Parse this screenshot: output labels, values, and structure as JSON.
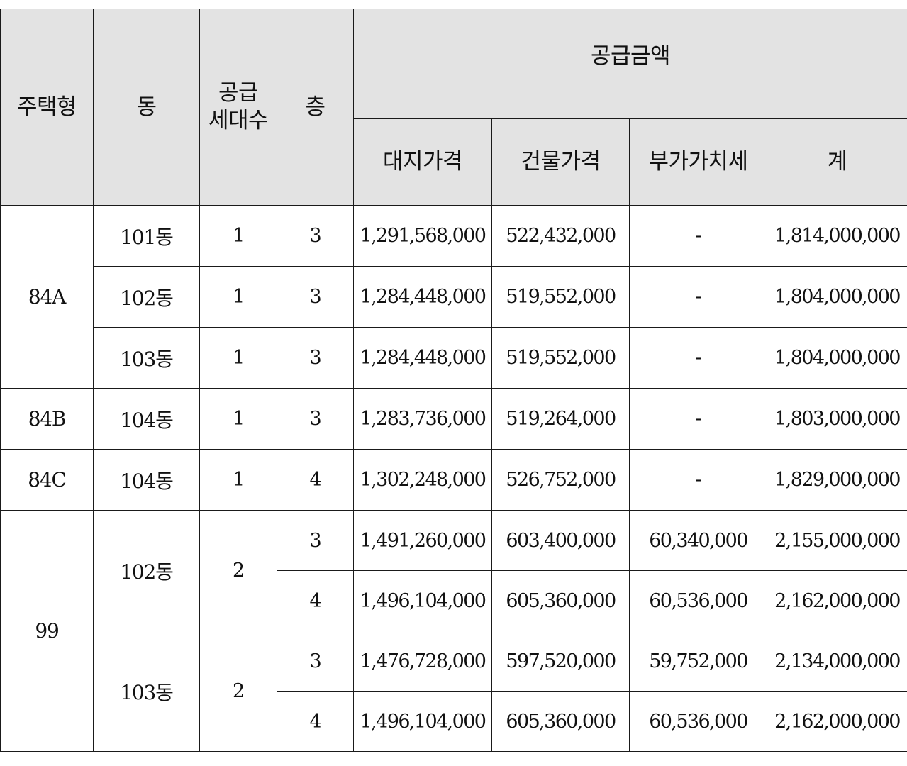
{
  "table": {
    "headers": {
      "type": "주택형",
      "dong": "동",
      "units_line1": "공급",
      "units_line2": "세대수",
      "floor": "층",
      "amount": "공급금액",
      "land": "대지가격",
      "building": "건물가격",
      "vat": "부가가치세",
      "total": "계"
    },
    "groups": [
      {
        "type": "84A",
        "rows": [
          {
            "dong": "101동",
            "units": "1",
            "floor": "3",
            "land": "1,291,568,000",
            "building": "522,432,000",
            "vat": "-",
            "total": "1,814,000,000"
          },
          {
            "dong": "102동",
            "units": "1",
            "floor": "3",
            "land": "1,284,448,000",
            "building": "519,552,000",
            "vat": "-",
            "total": "1,804,000,000"
          },
          {
            "dong": "103동",
            "units": "1",
            "floor": "3",
            "land": "1,284,448,000",
            "building": "519,552,000",
            "vat": "-",
            "total": "1,804,000,000"
          }
        ]
      },
      {
        "type": "84B",
        "rows": [
          {
            "dong": "104동",
            "units": "1",
            "floor": "3",
            "land": "1,283,736,000",
            "building": "519,264,000",
            "vat": "-",
            "total": "1,803,000,000"
          }
        ]
      },
      {
        "type": "84C",
        "rows": [
          {
            "dong": "104동",
            "units": "1",
            "floor": "4",
            "land": "1,302,248,000",
            "building": "526,752,000",
            "vat": "-",
            "total": "1,829,000,000"
          }
        ]
      },
      {
        "type": "99",
        "dongs": [
          {
            "dong": "102동",
            "units": "2",
            "floors": [
              {
                "floor": "3",
                "land": "1,491,260,000",
                "building": "603,400,000",
                "vat": "60,340,000",
                "total": "2,155,000,000"
              },
              {
                "floor": "4",
                "land": "1,496,104,000",
                "building": "605,360,000",
                "vat": "60,536,000",
                "total": "2,162,000,000"
              }
            ]
          },
          {
            "dong": "103동",
            "units": "2",
            "floors": [
              {
                "floor": "3",
                "land": "1,476,728,000",
                "building": "597,520,000",
                "vat": "59,752,000",
                "total": "2,134,000,000"
              },
              {
                "floor": "4",
                "land": "1,496,104,000",
                "building": "605,360,000",
                "vat": "60,536,000",
                "total": "2,162,000,000"
              }
            ]
          }
        ]
      }
    ]
  }
}
